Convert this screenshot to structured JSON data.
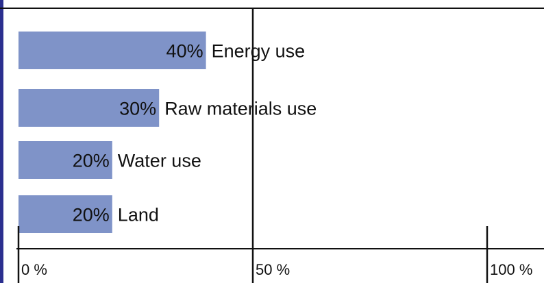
{
  "chart_data": {
    "type": "bar",
    "orientation": "horizontal",
    "categories": [
      "Energy use",
      "Raw materials use",
      "Water use",
      "Land"
    ],
    "values": [
      40,
      30,
      20,
      20
    ],
    "value_labels": [
      "40%",
      "30%",
      "20%",
      "20%"
    ],
    "xlim": [
      0,
      100
    ],
    "xticks": [
      "0 %",
      "50 %",
      "100 %"
    ],
    "bar_color": "#7f93c8",
    "grid": false
  }
}
